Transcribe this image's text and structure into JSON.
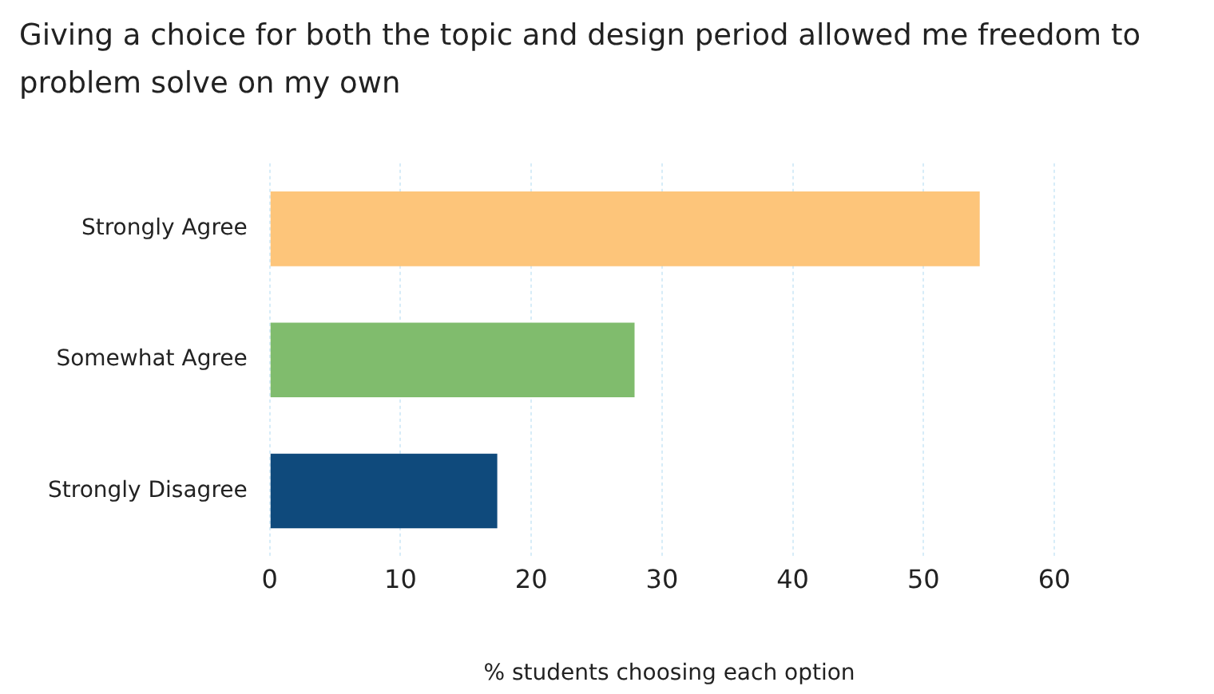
{
  "chart_data": {
    "type": "bar",
    "orientation": "horizontal",
    "title": "Giving a choice for both the topic and design period allowed me freedom to problem solve on my own",
    "xlabel": "% students choosing each option",
    "categories": [
      "Strongly Agree",
      "Somewhat Agree",
      "Strongly Disagree"
    ],
    "values": [
      54.3,
      27.9,
      17.4
    ],
    "colors": [
      "#fdc57a",
      "#80bc6d",
      "#0f4a7c"
    ],
    "xlim": [
      0,
      60
    ],
    "xticks": [
      0,
      10,
      20,
      30,
      40,
      50,
      60
    ],
    "grid": "x",
    "legend": false
  }
}
